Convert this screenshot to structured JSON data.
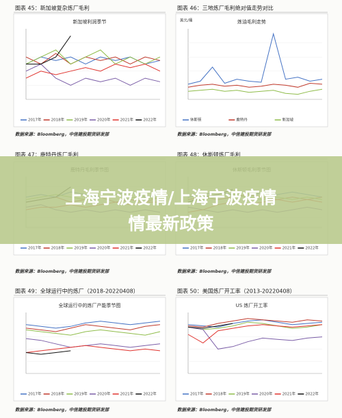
{
  "banner": {
    "line1": "上海宁波疫情/上海宁波疫情",
    "line2": "情最新政策"
  },
  "figures": [
    {
      "caption": "图表 45：新加坡复杂炼厂毛利",
      "source": "数据来源：Bloomberg，中信建投期货研发部",
      "chart": {
        "type": "line",
        "title": "新加坡利润季节",
        "ylim": [
          0,
          10
        ],
        "series": [
          {
            "name": "2017年",
            "color": "#4472c4",
            "values": [
              5,
              6,
              5.5,
              6,
              5,
              6,
              5.5,
              6,
              5,
              5.5
            ]
          },
          {
            "name": "2018年",
            "color": "#c0392b",
            "values": [
              6,
              5,
              6.5,
              5,
              6,
              5.5,
              6,
              5,
              6,
              5.5
            ]
          },
          {
            "name": "2019年",
            "color": "#8fbc4a",
            "values": [
              5,
              6,
              7,
              5,
              6,
              7,
              5,
              6,
              5,
              6
            ]
          },
          {
            "name": "2020年",
            "color": "#7b5ea7",
            "values": [
              4,
              5,
              3,
              2,
              3,
              2.5,
              3,
              2,
              3,
              2.5
            ]
          },
          {
            "name": "2021年",
            "color": "#e0322d",
            "values": [
              3,
              4,
              3.5,
              4,
              4.5,
              4,
              5,
              4.5,
              5,
              4
            ]
          },
          {
            "name": "2022年",
            "color": "#111111",
            "values": [
              5,
              5,
              6,
              9,
              null,
              null,
              null,
              null,
              null,
              null
            ]
          }
        ]
      }
    },
    {
      "caption": "图表 46：三地炼厂毛利绝对值走势对比",
      "source": "数据来源：Bloomberg，中信建投期货研发部",
      "chart": {
        "type": "line",
        "title": "炼油毛利走势",
        "ylabel": "美元/桶",
        "ylim": [
          0,
          70
        ],
        "series": [
          {
            "name": "休斯顿",
            "color": "#4472c4",
            "values": [
              15,
              18,
              32,
              16,
              20,
              18,
              17,
              65,
              20,
              22,
              18,
              20
            ]
          },
          {
            "name": "鹿特丹",
            "color": "#c0392b",
            "values": [
              12,
              14,
              15,
              13,
              14,
              12,
              13,
              15,
              14,
              12,
              16,
              15
            ]
          },
          {
            "name": "新加坡",
            "color": "#8fbc4a",
            "values": [
              8,
              9,
              10,
              8,
              9,
              7,
              8,
              9,
              6,
              5,
              8,
              10
            ]
          }
        ]
      }
    },
    {
      "caption": "图表 47：鹿特丹炼厂毛利",
      "source": "数据来源：Bloomberg，中信建投期货研发部",
      "chart": {
        "type": "line",
        "title": "鹿特丹毛利季节图",
        "ylim": [
          0,
          10
        ],
        "series": [
          {
            "name": "2017年",
            "color": "#4472c4",
            "values": [
              6,
              6.5,
              6,
              7,
              6.5,
              6,
              6.5,
              7,
              6,
              6.5
            ]
          },
          {
            "name": "2018年",
            "color": "#c0392b",
            "values": [
              5,
              5.5,
              6,
              5,
              5.5,
              6,
              5,
              5.5,
              5,
              6
            ]
          },
          {
            "name": "2019年",
            "color": "#8fbc4a",
            "values": [
              5.5,
              6,
              6.5,
              6,
              5.5,
              6,
              6.5,
              6,
              5.5,
              6
            ]
          },
          {
            "name": "2020年",
            "color": "#7b5ea7",
            "values": [
              4,
              4.5,
              3.5,
              3,
              3.5,
              3,
              3.5,
              3,
              3.5,
              3
            ]
          },
          {
            "name": "2021年",
            "color": "#e0322d",
            "values": [
              3.5,
              4,
              4,
              4.5,
              4,
              4.5,
              5,
              4.5,
              5,
              5
            ]
          },
          {
            "name": "2022年",
            "color": "#111111",
            "values": [
              5,
              5.5,
              6,
              8,
              null,
              null,
              null,
              null,
              null,
              null
            ]
          }
        ]
      }
    },
    {
      "caption": "图表 48：休斯顿炼厂毛利",
      "source": "数据来源：Bloomberg，中信建投期货研发部",
      "chart": {
        "type": "line",
        "title": "休斯顿毛利季节图",
        "ylim": [
          0,
          10
        ],
        "series": [
          {
            "name": "2017年",
            "color": "#4472c4",
            "values": [
              6,
              6.5,
              7,
              6.5,
              6,
              7,
              6.5,
              7,
              6.5,
              6
            ]
          },
          {
            "name": "2018年",
            "color": "#c0392b",
            "values": [
              5.5,
              6,
              5.5,
              6,
              6.5,
              6,
              5.5,
              6,
              5.5,
              6
            ]
          },
          {
            "name": "2019年",
            "color": "#8fbc4a",
            "values": [
              5,
              5.5,
              6,
              6.5,
              6,
              5.5,
              6,
              5.5,
              6,
              5.5
            ]
          },
          {
            "name": "2020年",
            "color": "#7b5ea7",
            "values": [
              4,
              3.5,
              3,
              3.5,
              3,
              3.5,
              3,
              3.5,
              4,
              3.5
            ]
          },
          {
            "name": "2021年",
            "color": "#e0322d",
            "values": [
              3,
              3.5,
              4.5,
              5,
              4.5,
              5,
              5.5,
              5,
              5.5,
              5
            ]
          },
          {
            "name": "2022年",
            "color": "#111111",
            "values": [
              5,
              6,
              6.5,
              7.5,
              null,
              null,
              null,
              null,
              null,
              null
            ]
          }
        ]
      }
    },
    {
      "caption": "图表 49：全球运行中的炼厂（2018-20220408）",
      "source": "数据来源：Bloomberg，中信建投期货研发部",
      "chart": {
        "type": "line",
        "title": "全球运行中的炼厂产能季节图",
        "ylim": [
          60,
          95
        ],
        "series": [
          {
            "name": "2017年",
            "color": "#4472c4",
            "values": [
              88,
              87,
              86,
              87,
              89,
              90,
              89,
              88,
              89,
              90
            ]
          },
          {
            "name": "2018年",
            "color": "#c0392b",
            "values": [
              86,
              85,
              84,
              86,
              88,
              87,
              86,
              85,
              87,
              88
            ]
          },
          {
            "name": "2019年",
            "color": "#8fbc4a",
            "values": [
              85,
              84,
              83,
              82,
              84,
              85,
              84,
              83,
              82,
              84
            ]
          },
          {
            "name": "2020年",
            "color": "#7b5ea7",
            "values": [
              80,
              79,
              77,
              75,
              76,
              77,
              76,
              75,
              76,
              77
            ]
          },
          {
            "name": "2021年",
            "color": "#e0322d",
            "values": [
              72,
              73,
              74,
              75,
              76,
              75,
              74,
              73,
              74,
              73
            ]
          },
          {
            "name": "2022年",
            "color": "#111111",
            "values": [
              72,
              71,
              72,
              73,
              null,
              null,
              null,
              null,
              null,
              null
            ]
          }
        ]
      }
    },
    {
      "caption": "图表 50：美国炼厂开工率（2013-20220408）",
      "source": "数据来源：Bloomberg，中信建投期货研发部",
      "chart": {
        "type": "line",
        "title": "US 炼厂开工率",
        "ylim": [
          50,
          100
        ],
        "series": [
          {
            "name": "2017年",
            "color": "#4472c4",
            "values": [
              90,
              89,
              88,
              91,
              93,
              94,
              92,
              90,
              91,
              92
            ]
          },
          {
            "name": "2018年",
            "color": "#c0392b",
            "values": [
              89,
              88,
              91,
              93,
              95,
              94,
              93,
              92,
              94,
              93
            ]
          },
          {
            "name": "2019年",
            "color": "#8fbc4a",
            "values": [
              88,
              86,
              87,
              89,
              92,
              91,
              89,
              87,
              88,
              90
            ]
          },
          {
            "name": "2020年",
            "color": "#7b5ea7",
            "values": [
              88,
              86,
              70,
              72,
              76,
              79,
              78,
              77,
              79,
              80
            ]
          },
          {
            "name": "2021年",
            "color": "#e0322d",
            "values": [
              82,
              75,
              85,
              87,
              89,
              90,
              89,
              88,
              89,
              90
            ]
          },
          {
            "name": "2022年",
            "color": "#111111",
            "values": [
              88,
              87,
              89,
              91,
              null,
              null,
              null,
              null,
              null,
              null
            ]
          }
        ]
      }
    }
  ]
}
